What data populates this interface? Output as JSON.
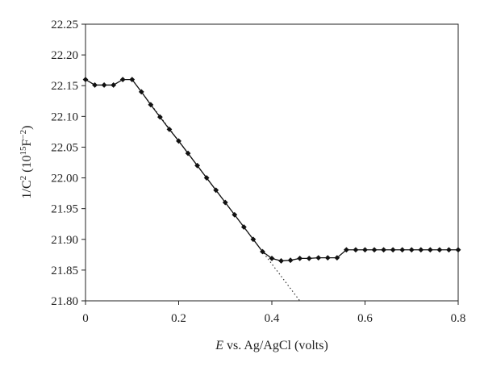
{
  "chart_data": {
    "type": "line",
    "title": "",
    "xlabel": {
      "italic": "E",
      "rest": " vs. Ag/AgCl (volts)"
    },
    "ylabel": {
      "a": "1/C",
      "a_sup": "2",
      "b": " (10",
      "b_sup": "15",
      "c": "F",
      "c_sup": "−2",
      "d": ")"
    },
    "xlim": [
      0,
      0.8
    ],
    "ylim": [
      21.8,
      22.25
    ],
    "x_ticks": [
      "0",
      "0.2",
      "0.4",
      "0.6",
      "0.8"
    ],
    "y_ticks": [
      "21.80",
      "21.85",
      "21.90",
      "21.95",
      "22.00",
      "22.05",
      "22.10",
      "22.15",
      "22.20",
      "22.25"
    ],
    "grid": false,
    "legend": "none",
    "series": [
      {
        "style": "solid-line-with-diamond-markers",
        "points": [
          [
            0.0,
            22.16
          ],
          [
            0.02,
            22.151
          ],
          [
            0.04,
            22.151
          ],
          [
            0.06,
            22.151
          ],
          [
            0.08,
            22.16
          ],
          [
            0.1,
            22.16
          ],
          [
            0.12,
            22.14
          ],
          [
            0.14,
            22.119
          ],
          [
            0.16,
            22.099
          ],
          [
            0.18,
            22.079
          ],
          [
            0.2,
            22.06
          ],
          [
            0.22,
            22.04
          ],
          [
            0.24,
            22.02
          ],
          [
            0.26,
            22.0
          ],
          [
            0.28,
            21.98
          ],
          [
            0.3,
            21.96
          ],
          [
            0.32,
            21.94
          ],
          [
            0.34,
            21.92
          ],
          [
            0.36,
            21.9
          ],
          [
            0.38,
            21.88
          ],
          [
            0.4,
            21.869
          ],
          [
            0.42,
            21.865
          ],
          [
            0.44,
            21.866
          ],
          [
            0.46,
            21.869
          ],
          [
            0.48,
            21.869
          ],
          [
            0.5,
            21.87
          ],
          [
            0.52,
            21.87
          ],
          [
            0.54,
            21.87
          ],
          [
            0.56,
            21.883
          ],
          [
            0.58,
            21.883
          ],
          [
            0.6,
            21.883
          ],
          [
            0.62,
            21.883
          ],
          [
            0.64,
            21.883
          ],
          [
            0.66,
            21.883
          ],
          [
            0.68,
            21.883
          ],
          [
            0.7,
            21.883
          ],
          [
            0.72,
            21.883
          ],
          [
            0.74,
            21.883
          ],
          [
            0.76,
            21.883
          ],
          [
            0.78,
            21.883
          ],
          [
            0.8,
            21.883
          ]
        ]
      },
      {
        "style": "dotted-fit-line",
        "points": [
          [
            0.1,
            22.16
          ],
          [
            0.46,
            21.8
          ]
        ]
      }
    ]
  }
}
